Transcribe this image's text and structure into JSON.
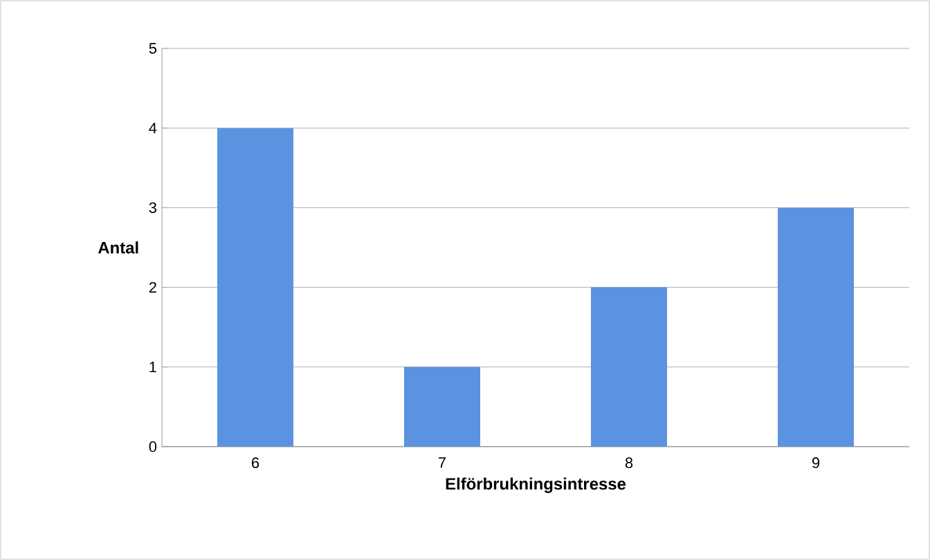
{
  "chart_data": {
    "type": "bar",
    "xlabel": "Elförbrukningsintresse",
    "ylabel": "Antal",
    "categories": [
      "6",
      "7",
      "8",
      "9"
    ],
    "values": [
      4,
      1,
      2,
      3
    ],
    "color": "#5b93e0",
    "ylim": [
      0,
      5
    ],
    "yticks": [
      0,
      1,
      2,
      3,
      4,
      5
    ],
    "grid": "y"
  }
}
